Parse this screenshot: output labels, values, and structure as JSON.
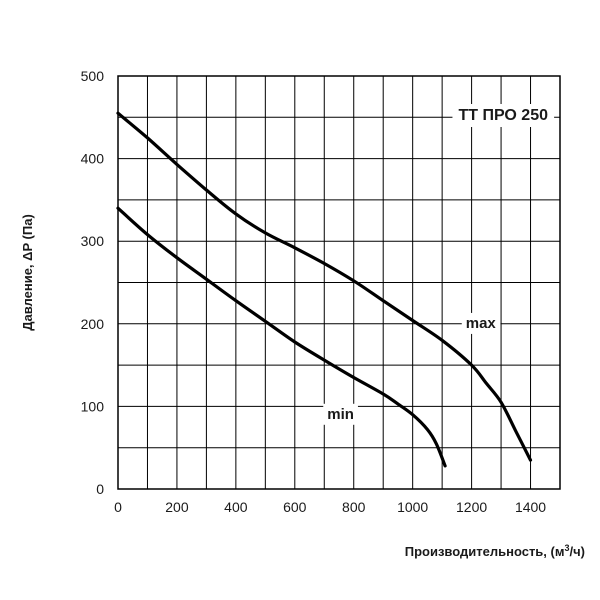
{
  "chart_data": {
    "type": "line",
    "title": "TT ПРО 250",
    "xlabel": "Производительность, (м³/ч)",
    "ylabel": "Давление, ΔP (Па)",
    "xlim": [
      0,
      1500
    ],
    "ylim": [
      0,
      500
    ],
    "x_ticks": [
      "0",
      "200",
      "400",
      "600",
      "800",
      "1000",
      "1200",
      "1400"
    ],
    "y_ticks": [
      "0",
      "100",
      "200",
      "300",
      "400",
      "500"
    ],
    "grid": true,
    "legend": "none",
    "series": [
      {
        "name": "max",
        "color": "#000000",
        "x": [
          0,
          100,
          200,
          300,
          400,
          500,
          600,
          700,
          800,
          900,
          1000,
          1100,
          1200,
          1250,
          1300,
          1350,
          1400
        ],
        "y": [
          455,
          425,
          393,
          362,
          333,
          310,
          292,
          273,
          252,
          228,
          204,
          180,
          150,
          128,
          105,
          70,
          35
        ]
      },
      {
        "name": "min",
        "color": "#000000",
        "x": [
          0,
          100,
          200,
          300,
          400,
          500,
          600,
          700,
          800,
          900,
          950,
          1000,
          1050,
          1080,
          1110
        ],
        "y": [
          340,
          308,
          280,
          254,
          228,
          203,
          178,
          156,
          135,
          115,
          103,
          90,
          72,
          55,
          28
        ]
      }
    ]
  }
}
